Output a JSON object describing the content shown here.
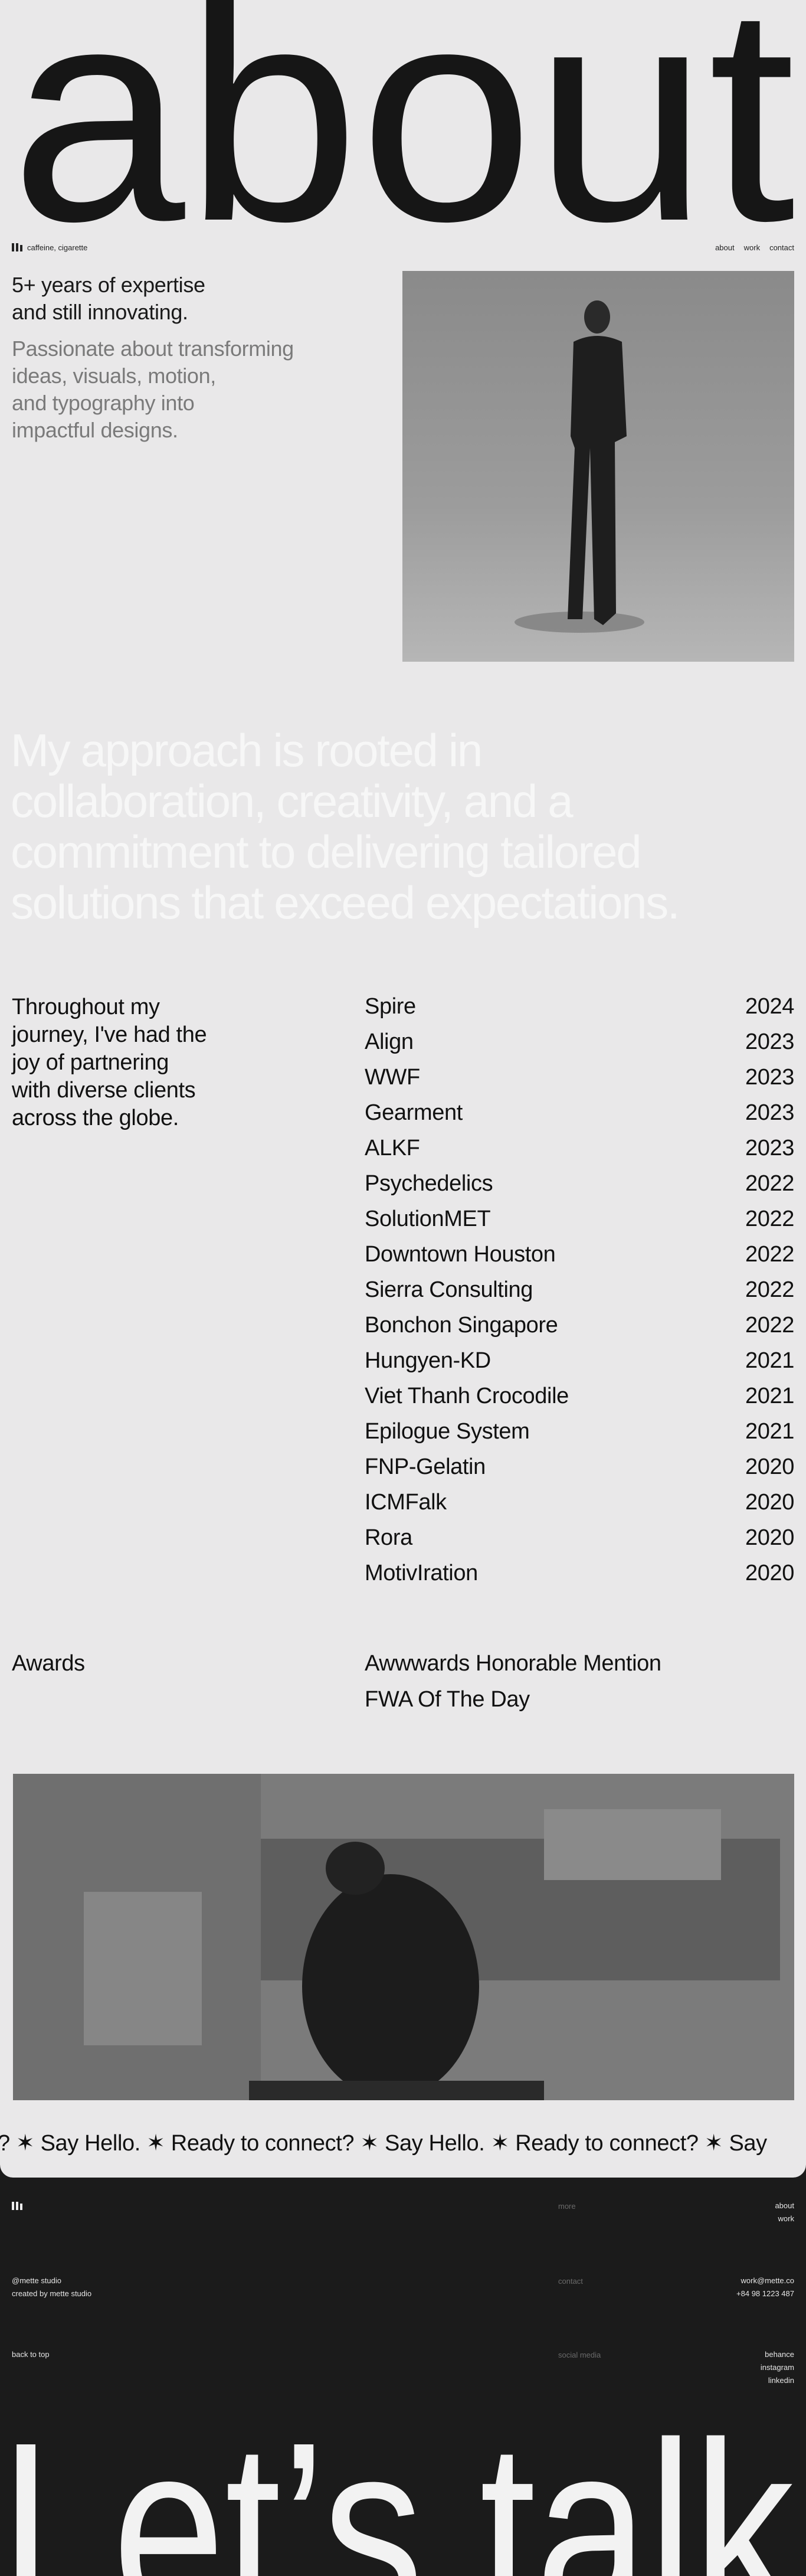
{
  "header": {
    "title": "about",
    "tagline": "caffeine, cigarette",
    "nav": [
      "about",
      "work",
      "contact"
    ]
  },
  "intro": {
    "headline": [
      "5+ years of expertise",
      "and still innovating."
    ],
    "description": [
      "Passionate about transforming",
      "ideas, visuals, motion,",
      "and typography into",
      "impactful designs."
    ]
  },
  "statement": [
    "My approach is rooted in",
    "collaboration, creativity, and a",
    "commitment to delivering tailored",
    "solutions that exceed expectations."
  ],
  "clients": {
    "intro": [
      "Throughout my",
      "journey, I've had the",
      "joy of partnering",
      "with diverse clients",
      "across the globe."
    ],
    "rows": [
      [
        "Spire",
        "2024"
      ],
      [
        "Align",
        "2023"
      ],
      [
        "WWF",
        "2023"
      ],
      [
        "Gearment",
        "2023"
      ],
      [
        "ALKF",
        "2023"
      ],
      [
        "Psychedelics",
        "2022"
      ],
      [
        "SolutionMET",
        "2022"
      ],
      [
        "Downtown Houston",
        "2022"
      ],
      [
        "Sierra Consulting",
        "2022"
      ],
      [
        "Bonchon Singapore",
        "2022"
      ],
      [
        "Hungyen-KD",
        "2021"
      ],
      [
        "Viet Thanh Crocodile",
        "2021"
      ],
      [
        "Epilogue System",
        "2021"
      ],
      [
        "FNP-Gelatin",
        "2020"
      ],
      [
        "ICMFalk",
        "2020"
      ],
      [
        "Rora",
        "2020"
      ],
      [
        "MotivIration",
        "2020"
      ]
    ]
  },
  "awards": {
    "label": "Awards",
    "items": [
      "Awwwards Honorable Mention",
      "FWA Of The Day"
    ]
  },
  "marquee": "? ✶ Say Hello. ✶ Ready to connect? ✶ Say Hello. ✶ Ready to connect? ✶ Say",
  "footer": {
    "more_label": "more",
    "more_links": [
      "about",
      "work"
    ],
    "studio": [
      "@mette studio",
      "created by mette studio"
    ],
    "contact_label": "contact",
    "contact": [
      "work@mette.co",
      "+84 98 1223 487"
    ],
    "back_to_top": "back to top",
    "social_label": "social media",
    "social": [
      "behance",
      "instagram",
      "linkedin"
    ],
    "cta": "Let’s talk"
  }
}
